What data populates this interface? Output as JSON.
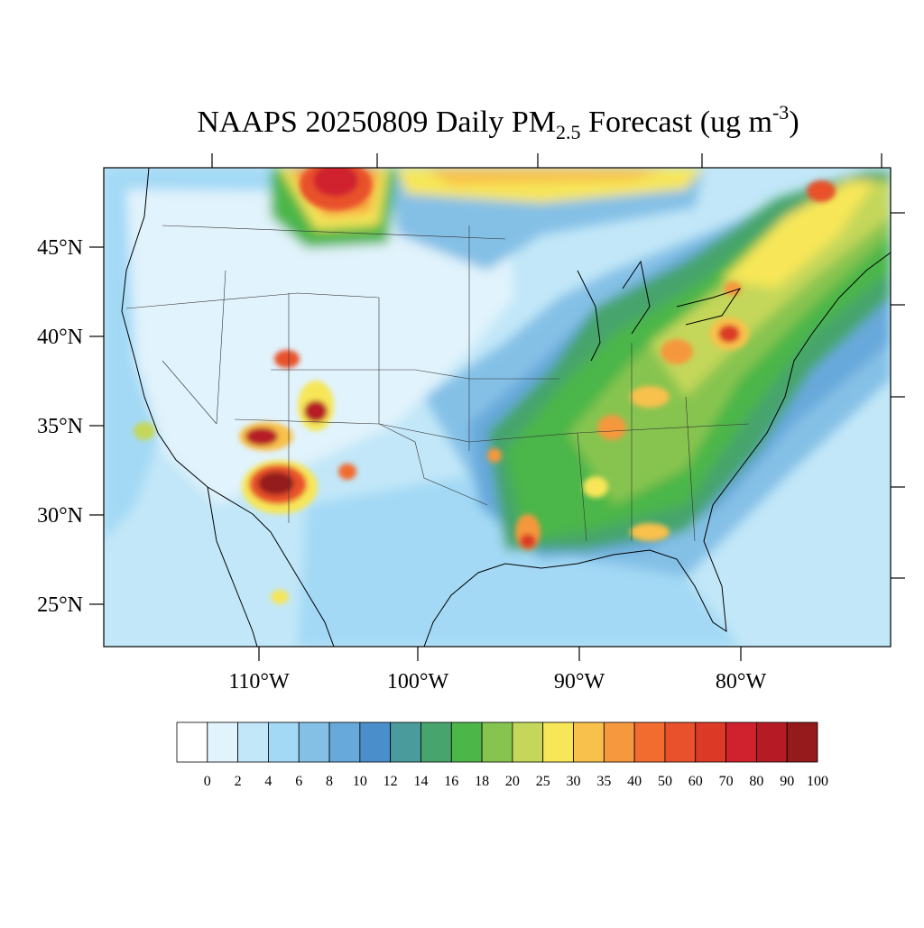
{
  "title": {
    "main": "NAAPS 20250809 Daily PM",
    "subscript": "2.5",
    "middle": " Forecast (ug m",
    "superscript": "-3",
    "end": ")"
  },
  "latitude_labels": [
    "45°N",
    "40°N",
    "35°N",
    "30°N",
    "25°N"
  ],
  "longitude_labels": [
    "110°W",
    "100°W",
    "90°W",
    "80°W"
  ],
  "colorbar": {
    "colors": [
      "#ffffff",
      "#e1f3fc",
      "#c2e7f8",
      "#a3d9f5",
      "#84c0e6",
      "#68a9db",
      "#4a8fcb",
      "#4a9b9b",
      "#47a46c",
      "#4cb649",
      "#87c44f",
      "#c4d75a",
      "#f7e658",
      "#f8c14c",
      "#f5983e",
      "#f26b2f",
      "#e8512c",
      "#dc3a27",
      "#d0222e",
      "#b51b25",
      "#941a1c"
    ],
    "labels": [
      0,
      2,
      4,
      6,
      8,
      10,
      12,
      14,
      16,
      18,
      20,
      25,
      30,
      35,
      40,
      50,
      60,
      70,
      80,
      90,
      100
    ]
  }
}
